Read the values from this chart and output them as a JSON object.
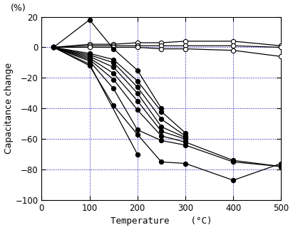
{
  "xlabel": "Temperature    (°C)",
  "ylabel_top": "(%)",
  "ylabel_main": "Capacitance change",
  "xlim": [
    0,
    500
  ],
  "ylim": [
    -100,
    20
  ],
  "xticks": [
    0,
    100,
    200,
    300,
    400,
    500
  ],
  "yticks": [
    -100,
    -80,
    -60,
    -40,
    -20,
    0,
    20
  ],
  "background_color": "#ffffff",
  "grid_color": "#0000bb",
  "open_circle_series": [
    {
      "x": [
        25,
        100,
        150,
        200,
        250,
        300,
        400,
        500
      ],
      "y": [
        0,
        2,
        2,
        3,
        3,
        4,
        4,
        1
      ]
    },
    {
      "x": [
        25,
        100,
        150,
        200,
        250,
        300,
        400,
        500
      ],
      "y": [
        0,
        1,
        1,
        1,
        1,
        1,
        1,
        0
      ]
    },
    {
      "x": [
        25,
        100,
        150,
        200,
        250,
        300,
        400,
        500
      ],
      "y": [
        0,
        0,
        0,
        0,
        -1,
        -1,
        -2,
        -6
      ]
    }
  ],
  "filled_series": [
    {
      "x": [
        25,
        100,
        150,
        200,
        250
      ],
      "y": [
        0,
        18,
        -1,
        -15,
        -40
      ]
    },
    {
      "x": [
        25,
        100,
        150,
        200,
        250,
        300
      ],
      "y": [
        0,
        -4,
        -8,
        -22,
        -42,
        -56
      ]
    },
    {
      "x": [
        25,
        100,
        150,
        200,
        250,
        300
      ],
      "y": [
        0,
        -5,
        -10,
        -26,
        -47,
        -58
      ]
    },
    {
      "x": [
        25,
        100,
        150,
        200,
        250,
        300
      ],
      "y": [
        0,
        -6,
        -13,
        -30,
        -52,
        -59
      ]
    },
    {
      "x": [
        25,
        100,
        150,
        200,
        250,
        300
      ],
      "y": [
        0,
        -7,
        -17,
        -35,
        -55,
        -60
      ]
    },
    {
      "x": [
        25,
        100,
        150,
        200,
        250,
        300,
        400,
        500
      ],
      "y": [
        0,
        -8,
        -21,
        -41,
        -58,
        -62,
        -74,
        -78
      ]
    },
    {
      "x": [
        25,
        100,
        150,
        200,
        250,
        300,
        400,
        500
      ],
      "y": [
        0,
        -9,
        -27,
        -54,
        -61,
        -64,
        -75,
        -78
      ]
    },
    {
      "x": [
        25,
        100,
        200
      ],
      "y": [
        0,
        -11,
        -70
      ]
    },
    {
      "x": [
        25,
        100,
        150,
        200,
        250,
        300,
        400,
        500
      ],
      "y": [
        0,
        -12,
        -38,
        -57,
        -75,
        -76,
        -87,
        -76
      ]
    }
  ]
}
